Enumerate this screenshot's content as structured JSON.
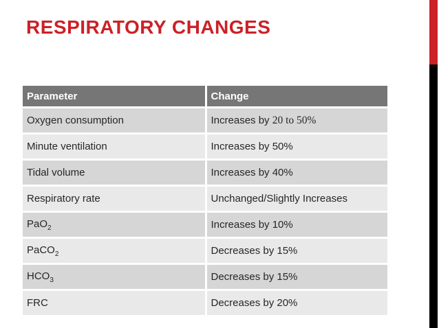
{
  "slide": {
    "title": "RESPIRATORY CHANGES",
    "accent_red": "#cb2127",
    "stripe_black": "#000000"
  },
  "table": {
    "header": [
      "Parameter",
      "Change"
    ],
    "rows": [
      {
        "parameter": [
          {
            "t": "Oxygen consumption"
          }
        ],
        "change": [
          {
            "t": "Increases by "
          },
          {
            "t": "20 to 50%",
            "style": "serif"
          }
        ]
      },
      {
        "parameter": [
          {
            "t": "Minute ventilation"
          }
        ],
        "change": [
          {
            "t": "Increases by 50%"
          }
        ]
      },
      {
        "parameter": [
          {
            "t": "Tidal volume"
          }
        ],
        "change": [
          {
            "t": "Increases by 40%"
          }
        ]
      },
      {
        "parameter": [
          {
            "t": "Respiratory rate"
          }
        ],
        "change": [
          {
            "t": "Unchanged/Slightly Increases"
          }
        ]
      },
      {
        "parameter": [
          {
            "t": "PaO"
          },
          {
            "t": "2",
            "style": "sub"
          }
        ],
        "change": [
          {
            "t": "Increases by 10%"
          }
        ]
      },
      {
        "parameter": [
          {
            "t": "PaCO"
          },
          {
            "t": "2",
            "style": "sub"
          }
        ],
        "change": [
          {
            "t": "Decreases by 15%"
          }
        ]
      },
      {
        "parameter": [
          {
            "t": "HCO"
          },
          {
            "t": "3",
            "style": "sub"
          }
        ],
        "change": [
          {
            "t": "Decreases by 15%"
          }
        ]
      },
      {
        "parameter": [
          {
            "t": "FRC"
          }
        ],
        "change": [
          {
            "t": "Decreases by 20%"
          }
        ]
      }
    ],
    "colors": {
      "header_bg": "#767676",
      "header_text": "#ffffff",
      "row_dark": "#d6d6d6",
      "row_light": "#e9e9e9",
      "cell_text": "#262626"
    }
  }
}
